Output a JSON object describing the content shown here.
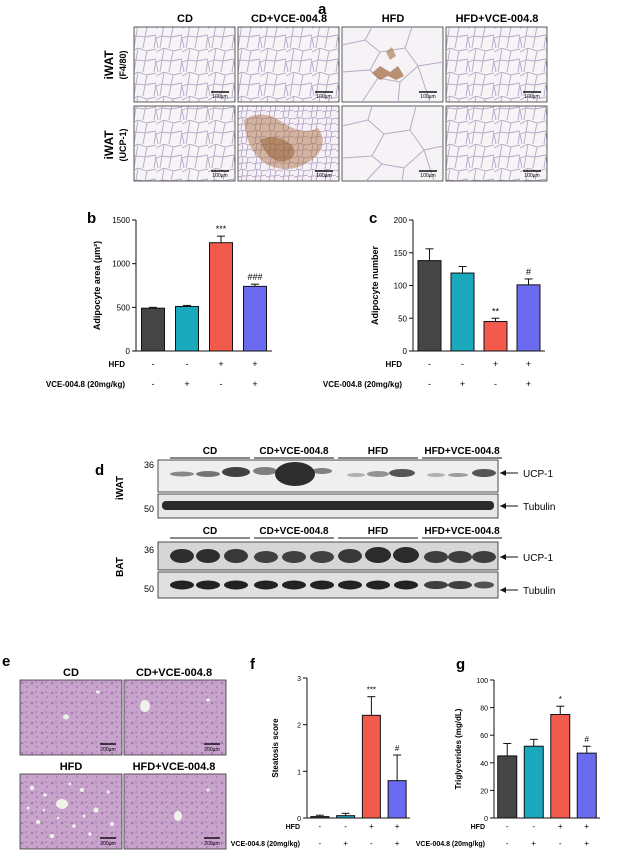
{
  "panels": {
    "a": "a",
    "b": "b",
    "c": "c",
    "d": "d",
    "e": "e",
    "f": "f",
    "g": "g"
  },
  "groups": [
    "CD",
    "CD+VCE-004.8",
    "HFD",
    "HFD+VCE-004.8"
  ],
  "scale_bar_100": "100µm",
  "scale_bar_200": "200µm",
  "panel_a": {
    "row_labels": [
      {
        "main": "iWAT",
        "sub": "(F4/80)"
      },
      {
        "main": "iWAT",
        "sub": "(UCP-1)"
      }
    ]
  },
  "panel_d": {
    "iwat_label": "iWAT",
    "bat_label": "BAT",
    "mw_36": "36",
    "mw_50": "50",
    "band_ucp1": "UCP-1",
    "band_tubulin": "Tubulin"
  },
  "panel_e": {
    "labels": [
      "CD",
      "CD+VCE-004.8",
      "HFD",
      "HFD+VCE-004.8"
    ]
  },
  "colors": {
    "CD": "#454545",
    "CD+VCE-004.8": "#1aa8bd",
    "HFD": "#f25a4c",
    "HFD+VCE-004.8": "#6b6bf2",
    "adipose_bg": "#f3eef4",
    "dab_brown": "#a56a3a",
    "he_pink": "#c39ac6"
  },
  "chart_data": [
    {
      "panel": "b",
      "type": "bar",
      "categories": [
        "CD",
        "CD+VCE-004.8",
        "HFD",
        "HFD+VCE-004.8"
      ],
      "values": [
        490,
        510,
        1240,
        740
      ],
      "errors": [
        10,
        12,
        75,
        25
      ],
      "significance": [
        "",
        "",
        "***",
        "###"
      ],
      "ylabel": "Adipocyte area (µm²)",
      "ylim": [
        0,
        1500
      ],
      "yticks": [
        "0",
        "500",
        "1000",
        "1500"
      ],
      "treatment_rows": [
        {
          "label": "HFD",
          "signs": [
            "-",
            "-",
            "+",
            "+"
          ]
        },
        {
          "label": "VCE-004.8 (20mg/kg)",
          "signs": [
            "-",
            "+",
            "-",
            "+"
          ]
        }
      ]
    },
    {
      "panel": "c",
      "type": "bar",
      "categories": [
        "CD",
        "CD+VCE-004.8",
        "HFD",
        "HFD+VCE-004.8"
      ],
      "values": [
        138,
        119,
        45,
        101
      ],
      "errors": [
        18,
        10,
        5,
        9
      ],
      "significance": [
        "",
        "",
        "**",
        "#"
      ],
      "ylabel": "Adipocyte number",
      "ylim": [
        0,
        200
      ],
      "yticks": [
        "0",
        "50",
        "100",
        "150",
        "200"
      ],
      "treatment_rows": [
        {
          "label": "HFD",
          "signs": [
            "-",
            "-",
            "+",
            "+"
          ]
        },
        {
          "label": "VCE-004.8 (20mg/kg)",
          "signs": [
            "-",
            "+",
            "-",
            "+"
          ]
        }
      ]
    },
    {
      "panel": "f",
      "type": "bar",
      "categories": [
        "CD",
        "CD+VCE-004.8",
        "HFD",
        "HFD+VCE-004.8"
      ],
      "values": [
        0.03,
        0.05,
        2.2,
        0.8
      ],
      "errors": [
        0.03,
        0.05,
        0.4,
        0.55
      ],
      "significance": [
        "",
        "",
        "***",
        "#"
      ],
      "ylabel": "Steatosis score",
      "ylim": [
        0,
        3
      ],
      "yticks": [
        "0",
        "1",
        "2",
        "3"
      ],
      "treatment_rows": [
        {
          "label": "HFD",
          "signs": [
            "-",
            "-",
            "+",
            "+"
          ]
        },
        {
          "label": "VCE-004.8 (20mg/kg)",
          "signs": [
            "-",
            "+",
            "-",
            "+"
          ]
        }
      ]
    },
    {
      "panel": "g",
      "type": "bar",
      "categories": [
        "CD",
        "CD+VCE-004.8",
        "HFD",
        "HFD+VCE-004.8"
      ],
      "values": [
        45,
        52,
        75,
        47
      ],
      "errors": [
        9,
        5,
        6,
        5
      ],
      "significance": [
        "",
        "",
        "*",
        "#"
      ],
      "ylabel": "Triglycerides (mg/dL)",
      "ylim": [
        0,
        100
      ],
      "yticks": [
        "0",
        "20",
        "40",
        "60",
        "80",
        "100"
      ],
      "treatment_rows": [
        {
          "label": "HFD",
          "signs": [
            "-",
            "-",
            "+",
            "+"
          ]
        },
        {
          "label": "VCE-004.8 (20mg/kg)",
          "signs": [
            "-",
            "+",
            "-",
            "+"
          ]
        }
      ]
    }
  ]
}
